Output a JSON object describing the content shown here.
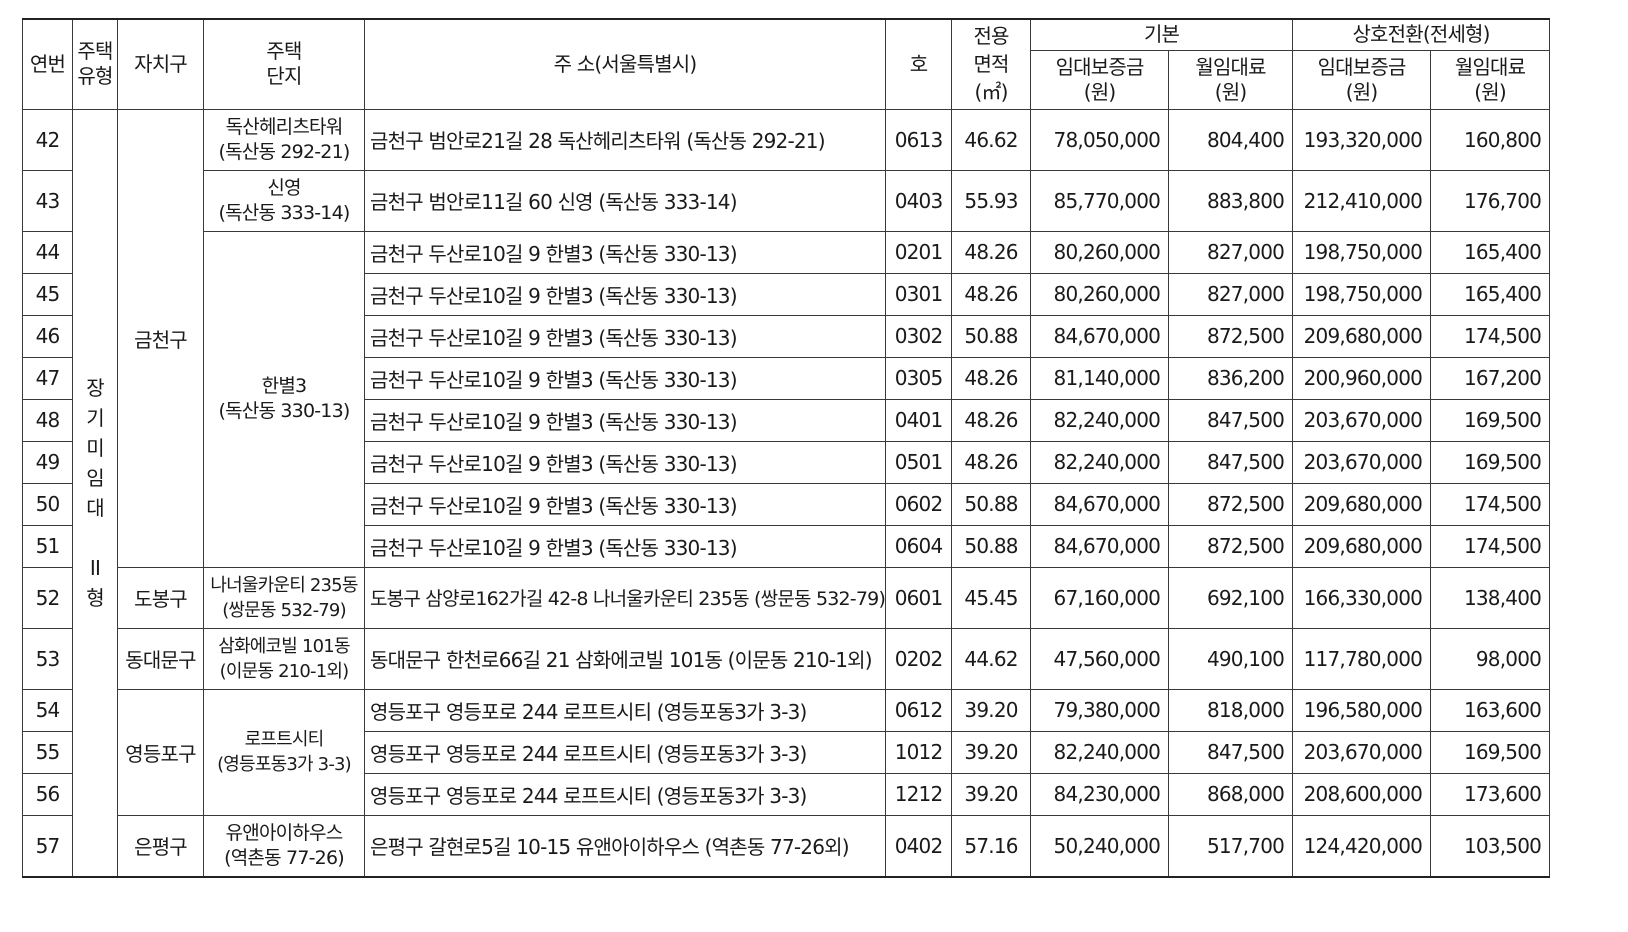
{
  "header": {
    "seq": "연번",
    "housing_type": "주택\n유형",
    "district": "자치구",
    "complex": "주택\n단지",
    "address": "주 소(서울특별시)",
    "unit": "호",
    "area": "전용\n면적\n(㎡)",
    "basic": "기본",
    "conversion": "상호전환(전세형)",
    "basic_deposit": "임대보증금\n(원)",
    "basic_rent": "월임대료\n(원)",
    "conv_deposit": "임대보증금\n(원)",
    "conv_rent": "월임대료\n(원)"
  },
  "housing_type_value": "장\n기\n미\n임\n대\n\nII\n형",
  "districts": {
    "geumcheon": "금천구",
    "dobong": "도봉구",
    "dongdaemun": "동대문구",
    "yeongdeungpo": "영등포구",
    "eunpyeong": "은평구"
  },
  "complexes": {
    "dongsan_heritz": "독산헤리츠타워\n(독산동 292-21)",
    "sinyeong": "신영\n(독산동 333-14)",
    "hanbyeol3": "한별3\n(독산동 330-13)",
    "naneoul": "나너울카운티 235동\n(쌍문동 532-79)",
    "samhwa": "삼화에코빌 101동\n(이문동 210-1외)",
    "loftcity": "로프트시티\n(영등포동3가 3-3)",
    "uan": "유앤아이하우스\n(역촌동 77-26)"
  },
  "rows": [
    {
      "seq": "42",
      "address": "금천구 범안로21길 28 독산헤리츠타워 (독산동 292-21)",
      "unit": "0613",
      "area": "46.62",
      "deposit": "78,050,000",
      "rent": "804,400",
      "conv_deposit": "193,320,000",
      "conv_rent": "160,800"
    },
    {
      "seq": "43",
      "address": "금천구 범안로11길 60 신영 (독산동 333-14)",
      "unit": "0403",
      "area": "55.93",
      "deposit": "85,770,000",
      "rent": "883,800",
      "conv_deposit": "212,410,000",
      "conv_rent": "176,700"
    },
    {
      "seq": "44",
      "address": "금천구 두산로10길 9 한별3 (독산동 330-13)",
      "unit": "0201",
      "area": "48.26",
      "deposit": "80,260,000",
      "rent": "827,000",
      "conv_deposit": "198,750,000",
      "conv_rent": "165,400"
    },
    {
      "seq": "45",
      "address": "금천구 두산로10길 9 한별3 (독산동 330-13)",
      "unit": "0301",
      "area": "48.26",
      "deposit": "80,260,000",
      "rent": "827,000",
      "conv_deposit": "198,750,000",
      "conv_rent": "165,400"
    },
    {
      "seq": "46",
      "address": "금천구 두산로10길 9 한별3 (독산동 330-13)",
      "unit": "0302",
      "area": "50.88",
      "deposit": "84,670,000",
      "rent": "872,500",
      "conv_deposit": "209,680,000",
      "conv_rent": "174,500"
    },
    {
      "seq": "47",
      "address": "금천구 두산로10길 9 한별3 (독산동 330-13)",
      "unit": "0305",
      "area": "48.26",
      "deposit": "81,140,000",
      "rent": "836,200",
      "conv_deposit": "200,960,000",
      "conv_rent": "167,200"
    },
    {
      "seq": "48",
      "address": "금천구 두산로10길 9 한별3 (독산동 330-13)",
      "unit": "0401",
      "area": "48.26",
      "deposit": "82,240,000",
      "rent": "847,500",
      "conv_deposit": "203,670,000",
      "conv_rent": "169,500"
    },
    {
      "seq": "49",
      "address": "금천구 두산로10길 9 한별3 (독산동 330-13)",
      "unit": "0501",
      "area": "48.26",
      "deposit": "82,240,000",
      "rent": "847,500",
      "conv_deposit": "203,670,000",
      "conv_rent": "169,500"
    },
    {
      "seq": "50",
      "address": "금천구 두산로10길 9 한별3 (독산동 330-13)",
      "unit": "0602",
      "area": "50.88",
      "deposit": "84,670,000",
      "rent": "872,500",
      "conv_deposit": "209,680,000",
      "conv_rent": "174,500"
    },
    {
      "seq": "51",
      "address": "금천구 두산로10길 9 한별3 (독산동 330-13)",
      "unit": "0604",
      "area": "50.88",
      "deposit": "84,670,000",
      "rent": "872,500",
      "conv_deposit": "209,680,000",
      "conv_rent": "174,500"
    },
    {
      "seq": "52",
      "address": "도봉구 삼양로162가길 42-8 나너울카운티 235동 (쌍문동 532-79)",
      "unit": "0601",
      "area": "45.45",
      "deposit": "67,160,000",
      "rent": "692,100",
      "conv_deposit": "166,330,000",
      "conv_rent": "138,400"
    },
    {
      "seq": "53",
      "address": "동대문구 한천로66길 21 삼화에코빌 101동 (이문동 210-1외)",
      "unit": "0202",
      "area": "44.62",
      "deposit": "47,560,000",
      "rent": "490,100",
      "conv_deposit": "117,780,000",
      "conv_rent": "98,000"
    },
    {
      "seq": "54",
      "address": "영등포구 영등포로 244 로프트시티 (영등포동3가 3-3)",
      "unit": "0612",
      "area": "39.20",
      "deposit": "79,380,000",
      "rent": "818,000",
      "conv_deposit": "196,580,000",
      "conv_rent": "163,600"
    },
    {
      "seq": "55",
      "address": "영등포구 영등포로 244 로프트시티 (영등포동3가 3-3)",
      "unit": "1012",
      "area": "39.20",
      "deposit": "82,240,000",
      "rent": "847,500",
      "conv_deposit": "203,670,000",
      "conv_rent": "169,500"
    },
    {
      "seq": "56",
      "address": "영등포구 영등포로 244 로프트시티 (영등포동3가 3-3)",
      "unit": "1212",
      "area": "39.20",
      "deposit": "84,230,000",
      "rent": "868,000",
      "conv_deposit": "208,600,000",
      "conv_rent": "173,600"
    },
    {
      "seq": "57",
      "address": "은평구 갈현로5길 10-15 유앤아이하우스 (역촌동 77-26외)",
      "unit": "0402",
      "area": "57.16",
      "deposit": "50,240,000",
      "rent": "517,700",
      "conv_deposit": "124,420,000",
      "conv_rent": "103,500"
    }
  ]
}
